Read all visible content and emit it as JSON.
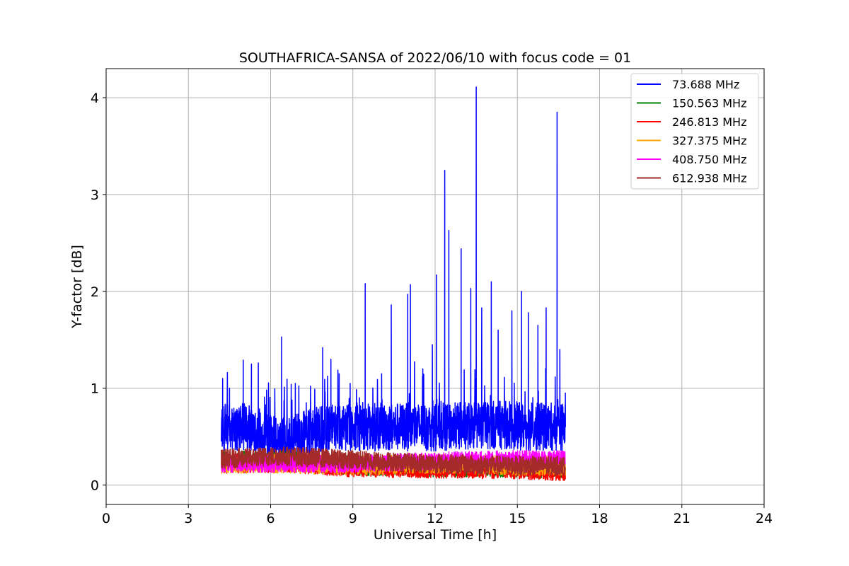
{
  "chart_data": {
    "type": "line",
    "title": "SOUTHAFRICA-SANSA of 2022/06/10 with focus code = 01",
    "xlabel": "Universal Time [h]",
    "ylabel": "Y-factor [dB]",
    "xlim": [
      0,
      24
    ],
    "ylim": [
      -0.2,
      4.3
    ],
    "xticks": [
      0,
      3,
      6,
      9,
      12,
      15,
      18,
      21,
      24
    ],
    "yticks": [
      0,
      1,
      2,
      3,
      4
    ],
    "grid": true,
    "legend_position": "top-right",
    "series": [
      {
        "name": " 73.688 MHz",
        "color": "#0000ff",
        "baseline": [
          [
            4.2,
            0.6
          ],
          [
            5.0,
            0.6
          ],
          [
            5.7,
            0.5
          ],
          [
            6.5,
            0.45
          ],
          [
            7.5,
            0.55
          ],
          [
            8.5,
            0.6
          ],
          [
            9.5,
            0.6
          ],
          [
            10.5,
            0.6
          ],
          [
            11.5,
            0.6
          ],
          [
            12.5,
            0.6
          ],
          [
            13.5,
            0.62
          ],
          [
            14.5,
            0.62
          ],
          [
            15.5,
            0.6
          ],
          [
            16.5,
            0.6
          ],
          [
            16.75,
            0.6
          ]
        ],
        "spread": 0.25,
        "peaks": [
          [
            4.25,
            1.1
          ],
          [
            4.5,
            1.0
          ],
          [
            5.0,
            1.29
          ],
          [
            5.3,
            1.25
          ],
          [
            5.55,
            1.26
          ],
          [
            6.4,
            1.53
          ],
          [
            6.75,
            1.04
          ],
          [
            6.9,
            1.05
          ],
          [
            7.3,
            0.85
          ],
          [
            7.9,
            1.42
          ],
          [
            8.2,
            1.3
          ],
          [
            8.5,
            1.15
          ],
          [
            8.9,
            1.05
          ],
          [
            9.45,
            2.08
          ],
          [
            10.05,
            1.15
          ],
          [
            10.4,
            1.86
          ],
          [
            11.0,
            1.97
          ],
          [
            11.1,
            2.07
          ],
          [
            11.55,
            1.2
          ],
          [
            11.9,
            1.45
          ],
          [
            12.05,
            2.17
          ],
          [
            12.35,
            3.25
          ],
          [
            12.5,
            2.63
          ],
          [
            12.95,
            2.44
          ],
          [
            13.3,
            2.03
          ],
          [
            13.5,
            4.11
          ],
          [
            13.7,
            1.83
          ],
          [
            14.05,
            2.1
          ],
          [
            14.3,
            1.6
          ],
          [
            14.8,
            1.8
          ],
          [
            15.15,
            2.0
          ],
          [
            15.4,
            1.78
          ],
          [
            15.75,
            1.65
          ],
          [
            16.05,
            1.83
          ],
          [
            16.45,
            3.85
          ],
          [
            16.55,
            1.4
          ],
          [
            16.75,
            0.95
          ]
        ]
      },
      {
        "name": "150.563 MHz",
        "color": "#008000",
        "baseline": [
          [
            4.2,
            0.25
          ],
          [
            6.5,
            0.25
          ],
          [
            9.0,
            0.2
          ],
          [
            12.0,
            0.18
          ],
          [
            15.0,
            0.18
          ],
          [
            16.75,
            0.15
          ]
        ],
        "spread": 0.1,
        "peaks": []
      },
      {
        "name": "246.813 MHz",
        "color": "#ff0000",
        "baseline": [
          [
            4.2,
            0.22
          ],
          [
            6.5,
            0.23
          ],
          [
            9.0,
            0.18
          ],
          [
            12.0,
            0.17
          ],
          [
            15.0,
            0.16
          ],
          [
            16.75,
            0.14
          ]
        ],
        "spread": 0.1,
        "peaks": []
      },
      {
        "name": "327.375 MHz",
        "color": "#ffa500",
        "baseline": [
          [
            4.2,
            0.22
          ],
          [
            6.5,
            0.22
          ],
          [
            9.0,
            0.2
          ],
          [
            12.0,
            0.22
          ],
          [
            15.0,
            0.2
          ],
          [
            16.75,
            0.2
          ]
        ],
        "spread": 0.1,
        "peaks": []
      },
      {
        "name": "408.750 MHz",
        "color": "#ff00ff",
        "baseline": [
          [
            4.2,
            0.22
          ],
          [
            6.5,
            0.22
          ],
          [
            9.0,
            0.22
          ],
          [
            12.0,
            0.25
          ],
          [
            15.0,
            0.27
          ],
          [
            16.75,
            0.27
          ]
        ],
        "spread": 0.09,
        "peaks": []
      },
      {
        "name": "612.938 MHz",
        "color": "#a52a2a",
        "baseline": [
          [
            4.2,
            0.27
          ],
          [
            6.5,
            0.3
          ],
          [
            9.0,
            0.26
          ],
          [
            12.0,
            0.22
          ],
          [
            15.0,
            0.2
          ],
          [
            16.75,
            0.2
          ]
        ],
        "spread": 0.1,
        "peaks": []
      }
    ]
  }
}
